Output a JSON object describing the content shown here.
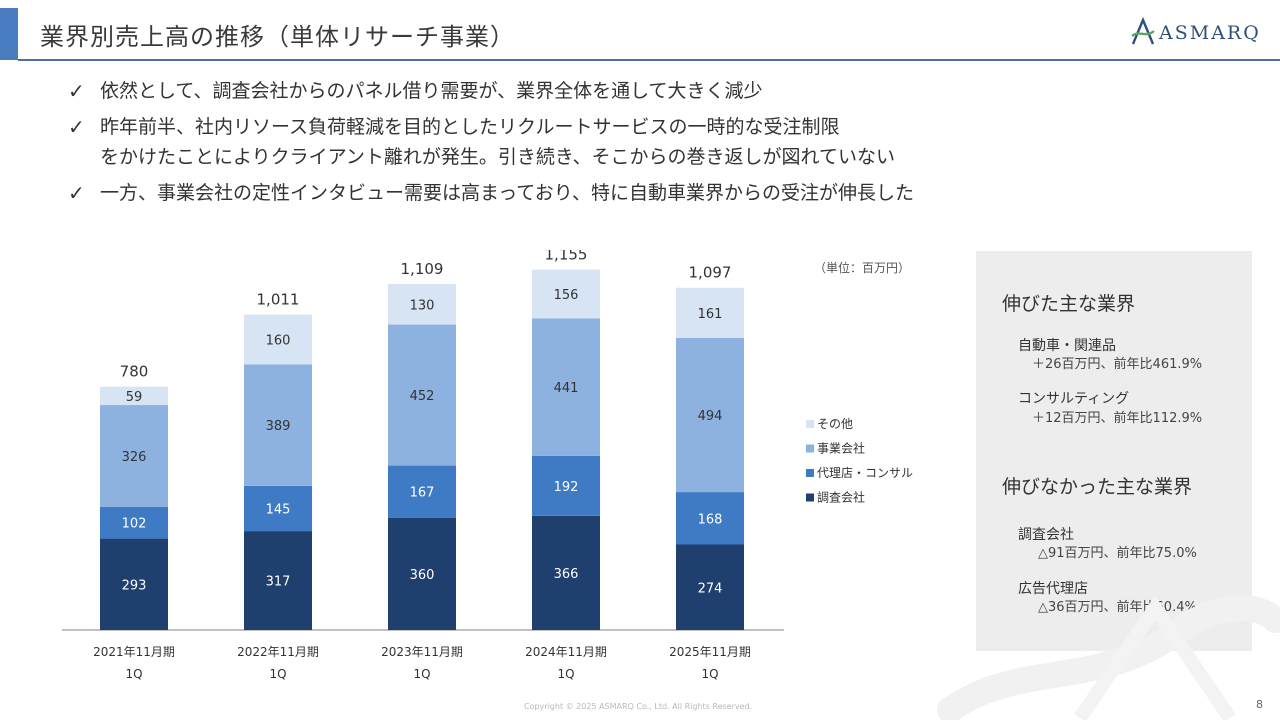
{
  "header": {
    "title": "業界別売上高の推移（単体リサーチ事業）",
    "logo_text": "ASMARQ",
    "accent_color": "#4a7cc0"
  },
  "bullets": [
    {
      "icon": "check-icon",
      "mark": "✓",
      "lines": [
        "依然として、調査会社からのパネル借り需要が、業界全体を通して大きく減少"
      ]
    },
    {
      "icon": "check-icon",
      "mark": "✓",
      "lines": [
        "昨年前半、社内リソース負荷軽減を目的としたリクルートサービスの一時的な受注制限",
        "をかけたことによりクライアント離れが発生。引き続き、そこからの巻き返しが図れていない"
      ]
    },
    {
      "icon": "check-icon",
      "mark": "✓",
      "lines": [
        "一方、事業会社の定性インタビュー需要は高まっており、特に自動車業界からの受注が伸長した"
      ]
    }
  ],
  "chart_data": {
    "type": "bar",
    "stacked": true,
    "unit_label": "（単位：百万円）",
    "categories": [
      [
        "2021年11月期",
        "1Q"
      ],
      [
        "2022年11月期",
        "1Q"
      ],
      [
        "2023年11月期",
        "1Q"
      ],
      [
        "2024年11月期",
        "1Q"
      ],
      [
        "2025年11月期",
        "1Q"
      ]
    ],
    "series": [
      {
        "name": "調査会社",
        "color": "#1f3f6e",
        "values": [
          293,
          317,
          360,
          366,
          274
        ]
      },
      {
        "name": "代理店・コンサル",
        "color": "#3f7ac4",
        "values": [
          102,
          145,
          167,
          192,
          168
        ]
      },
      {
        "name": "事業会社",
        "color": "#8db2e0",
        "values": [
          326,
          389,
          452,
          441,
          494
        ]
      },
      {
        "name": "その他",
        "color": "#d7e4f3",
        "values": [
          59,
          160,
          130,
          156,
          161
        ]
      }
    ],
    "totals": [
      "780",
      "1,011",
      "1,109",
      "1,155",
      "1,097"
    ],
    "ylim": [
      0,
      1250
    ],
    "legend_position": "right",
    "legend_order": [
      3,
      2,
      1,
      0
    ],
    "grid": false
  },
  "panel": {
    "grew_heading": "伸びた主な業界",
    "grew_items": [
      {
        "name": "自動車・関連品",
        "detail": "＋26百万円、前年比461.9%"
      },
      {
        "name": "コンサルティング",
        "detail": "＋12百万円、前年比112.9%"
      }
    ],
    "declined_heading": "伸びなかった主な業界",
    "declined_items": [
      {
        "name": "調査会社",
        "detail": "△91百万円、前年比75.0%"
      },
      {
        "name": "広告代理店",
        "detail": "△36百万円、前年比60.4%"
      }
    ]
  },
  "footer": {
    "copyright": "Copyright © 2025 ASMARQ Co., Ltd. All Rights Reserved.",
    "page_number": "8"
  }
}
